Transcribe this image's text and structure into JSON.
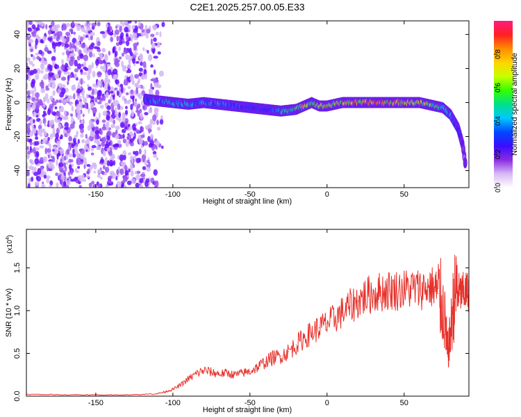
{
  "title": "C2E1.2025.257.00.05.E33",
  "chart_data": [
    {
      "type": "heatmap",
      "name": "spectrogram",
      "xlabel": "Height of straight line (km)",
      "ylabel": "Frequency (Hz)",
      "xlim": [
        -195,
        92
      ],
      "ylim": [
        -50,
        48
      ],
      "xticks": [
        -150,
        -100,
        -50,
        0,
        50
      ],
      "xtick_labels": [
        "-150",
        "-100",
        "-50",
        "0",
        "50"
      ],
      "yticks": [
        -40,
        -20,
        0,
        20,
        40
      ],
      "ytick_labels": [
        "-40",
        "-20",
        "0",
        "20",
        "40"
      ],
      "noise_region_km": [
        -195,
        -105
      ],
      "ridge": {
        "x": [
          -118,
          -110,
          -100,
          -90,
          -80,
          -70,
          -60,
          -50,
          -40,
          -30,
          -20,
          -15,
          -10,
          -5,
          0,
          5,
          10,
          20,
          30,
          40,
          50,
          60,
          65,
          70,
          75,
          80,
          85,
          88,
          90
        ],
        "y": [
          2,
          1,
          0,
          -1,
          0,
          -1,
          -2,
          -3,
          -4,
          -5,
          -4,
          -2,
          0,
          -2,
          -2,
          -1,
          0,
          0,
          0,
          0,
          0,
          0,
          -1,
          -2,
          -3,
          -7,
          -15,
          -25,
          -38
        ],
        "peak_amplitude": [
          0.35,
          0.45,
          0.5,
          0.5,
          0.45,
          0.45,
          0.4,
          0.35,
          0.35,
          0.5,
          0.6,
          0.8,
          0.6,
          0.75,
          0.85,
          0.7,
          0.9,
          0.95,
          0.97,
          0.95,
          0.9,
          0.85,
          0.75,
          0.65,
          0.6,
          0.45,
          0.35,
          0.25,
          0.2
        ]
      }
    },
    {
      "type": "line",
      "name": "snr",
      "xlabel": "Height of straight line (km)",
      "ylabel": "SNR (10 * v/v)",
      "scale_label": "(x10",
      "scale_exp": "4",
      "scale_close": ")",
      "xlim": [
        -195,
        92
      ],
      "ylim": [
        0,
        19500
      ],
      "xticks": [
        -150,
        -100,
        -50,
        0,
        50
      ],
      "xtick_labels": [
        "-150",
        "-100",
        "-50",
        "0",
        "50"
      ],
      "yticks": [
        0,
        5000,
        10000,
        15000
      ],
      "ytick_labels": [
        "0.0",
        "0.5",
        "1.0",
        "1.5"
      ],
      "color": "#e8302a",
      "series": [
        {
          "name": "SNR",
          "x": [
            -195,
            -180,
            -160,
            -140,
            -120,
            -110,
            -105,
            -100,
            -95,
            -90,
            -85,
            -80,
            -75,
            -70,
            -65,
            -60,
            -55,
            -50,
            -45,
            -40,
            -35,
            -30,
            -25,
            -20,
            -15,
            -10,
            -5,
            0,
            5,
            10,
            15,
            20,
            25,
            30,
            35,
            40,
            45,
            50,
            55,
            60,
            65,
            70,
            72,
            75,
            77,
            78,
            80,
            82,
            84,
            86,
            88,
            90,
            92
          ],
          "y": [
            200,
            200,
            150,
            150,
            200,
            300,
            500,
            800,
            1300,
            2000,
            2600,
            3000,
            2800,
            2600,
            2700,
            2500,
            2700,
            2900,
            3400,
            4000,
            4500,
            4700,
            5200,
            6000,
            6800,
            7400,
            8000,
            8500,
            9100,
            9800,
            10500,
            11100,
            11700,
            12000,
            12200,
            12400,
            12400,
            12500,
            12600,
            12500,
            12700,
            12800,
            12000,
            10500,
            8000,
            5000,
            7000,
            11000,
            12500,
            12000,
            12100,
            12200,
            12300
          ]
        }
      ]
    }
  ],
  "colorbar": {
    "label": "Normalized spectral amplitude",
    "range": [
      0,
      1
    ],
    "ticks": [
      0.0,
      0.2,
      0.4,
      0.6,
      0.8
    ],
    "tick_labels": [
      "0.0",
      "0.2",
      "0.4",
      "0.6",
      "0.8"
    ],
    "stops": [
      "#ffffff",
      "#d7b8f5",
      "#8a2be2",
      "#3b0cff",
      "#0048ff",
      "#00c8ff",
      "#00e08a",
      "#33ff00",
      "#c8ff00",
      "#ffd400",
      "#ff8c00",
      "#ff2020",
      "#ff1a80"
    ]
  }
}
